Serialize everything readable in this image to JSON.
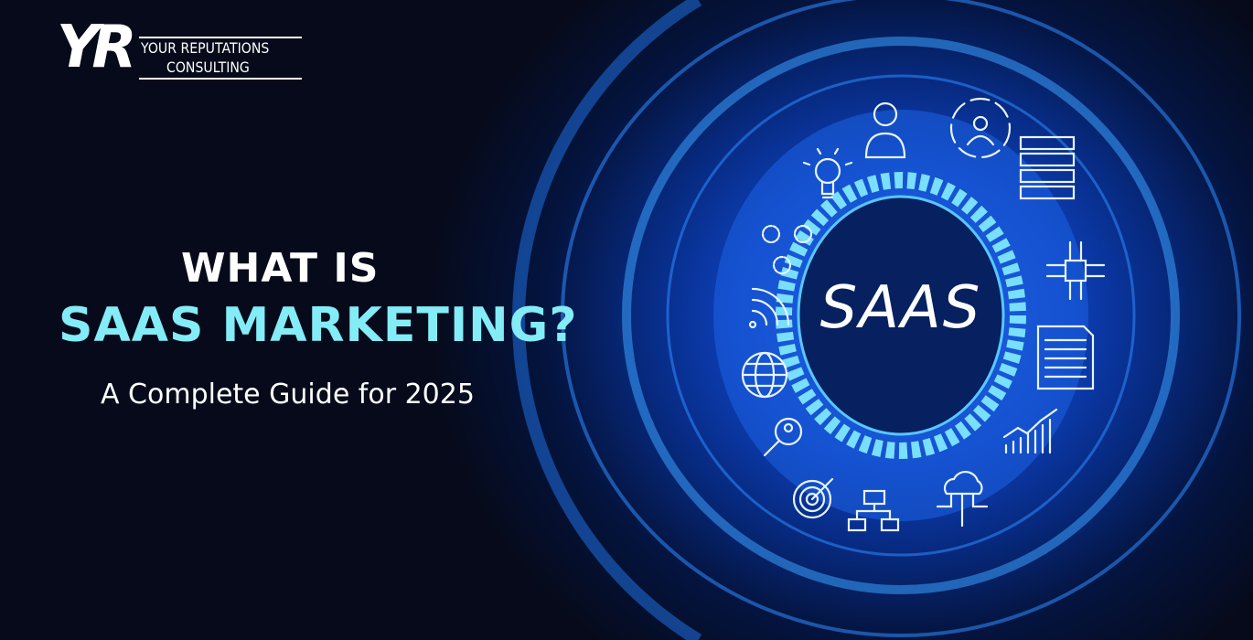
{
  "logo": {
    "mark": "YR",
    "line1": "YOUR REPUTATIONS",
    "line2": "CONSULTING"
  },
  "headline": {
    "line1": "WHAT IS",
    "line2": "SAAS MARKETING?",
    "subtitle": "A Complete Guide for 2025"
  },
  "graphic": {
    "center_text": "SAAS",
    "icons": [
      "user-icon",
      "team-network-icon",
      "server-icon",
      "lightbulb-icon",
      "gears-icon",
      "chip-icon",
      "wifi-icon",
      "document-icon",
      "globe-icon",
      "search-user-icon",
      "growth-chart-icon",
      "target-icon",
      "flowchart-icon",
      "cloud-network-icon"
    ]
  },
  "colors": {
    "background": "#060a1a",
    "accent_cyan": "#84ecf6",
    "glow_blue": "#1a5fe0"
  }
}
